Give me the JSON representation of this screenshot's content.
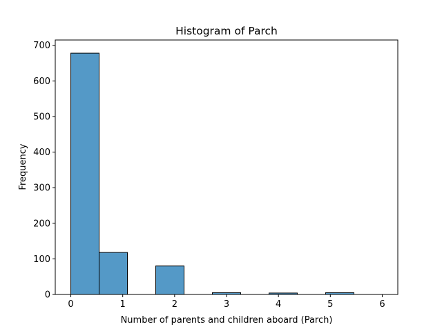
{
  "chart_data": {
    "type": "bar",
    "title": "Histogram of Parch",
    "xlabel": "Number of parents and children aboard (Parch)",
    "ylabel": "Frequency",
    "xlim": [
      -0.3,
      6.3
    ],
    "ylim": [
      0,
      715
    ],
    "xticks": [
      0,
      1,
      2,
      3,
      4,
      5,
      6
    ],
    "yticks": [
      0,
      100,
      200,
      300,
      400,
      500,
      600,
      700
    ],
    "bin_edges": [
      0,
      0.5455,
      1.0909,
      1.6364,
      2.1818,
      2.7273,
      3.2727,
      3.8182,
      4.3636,
      4.9091,
      5.4545,
      6.0
    ],
    "values": [
      678,
      118,
      0,
      80,
      0,
      5,
      0,
      4,
      0,
      5,
      0
    ],
    "grid": false,
    "colors": {
      "bar_fill": "#5499c7",
      "bar_edge": "#000000"
    }
  }
}
